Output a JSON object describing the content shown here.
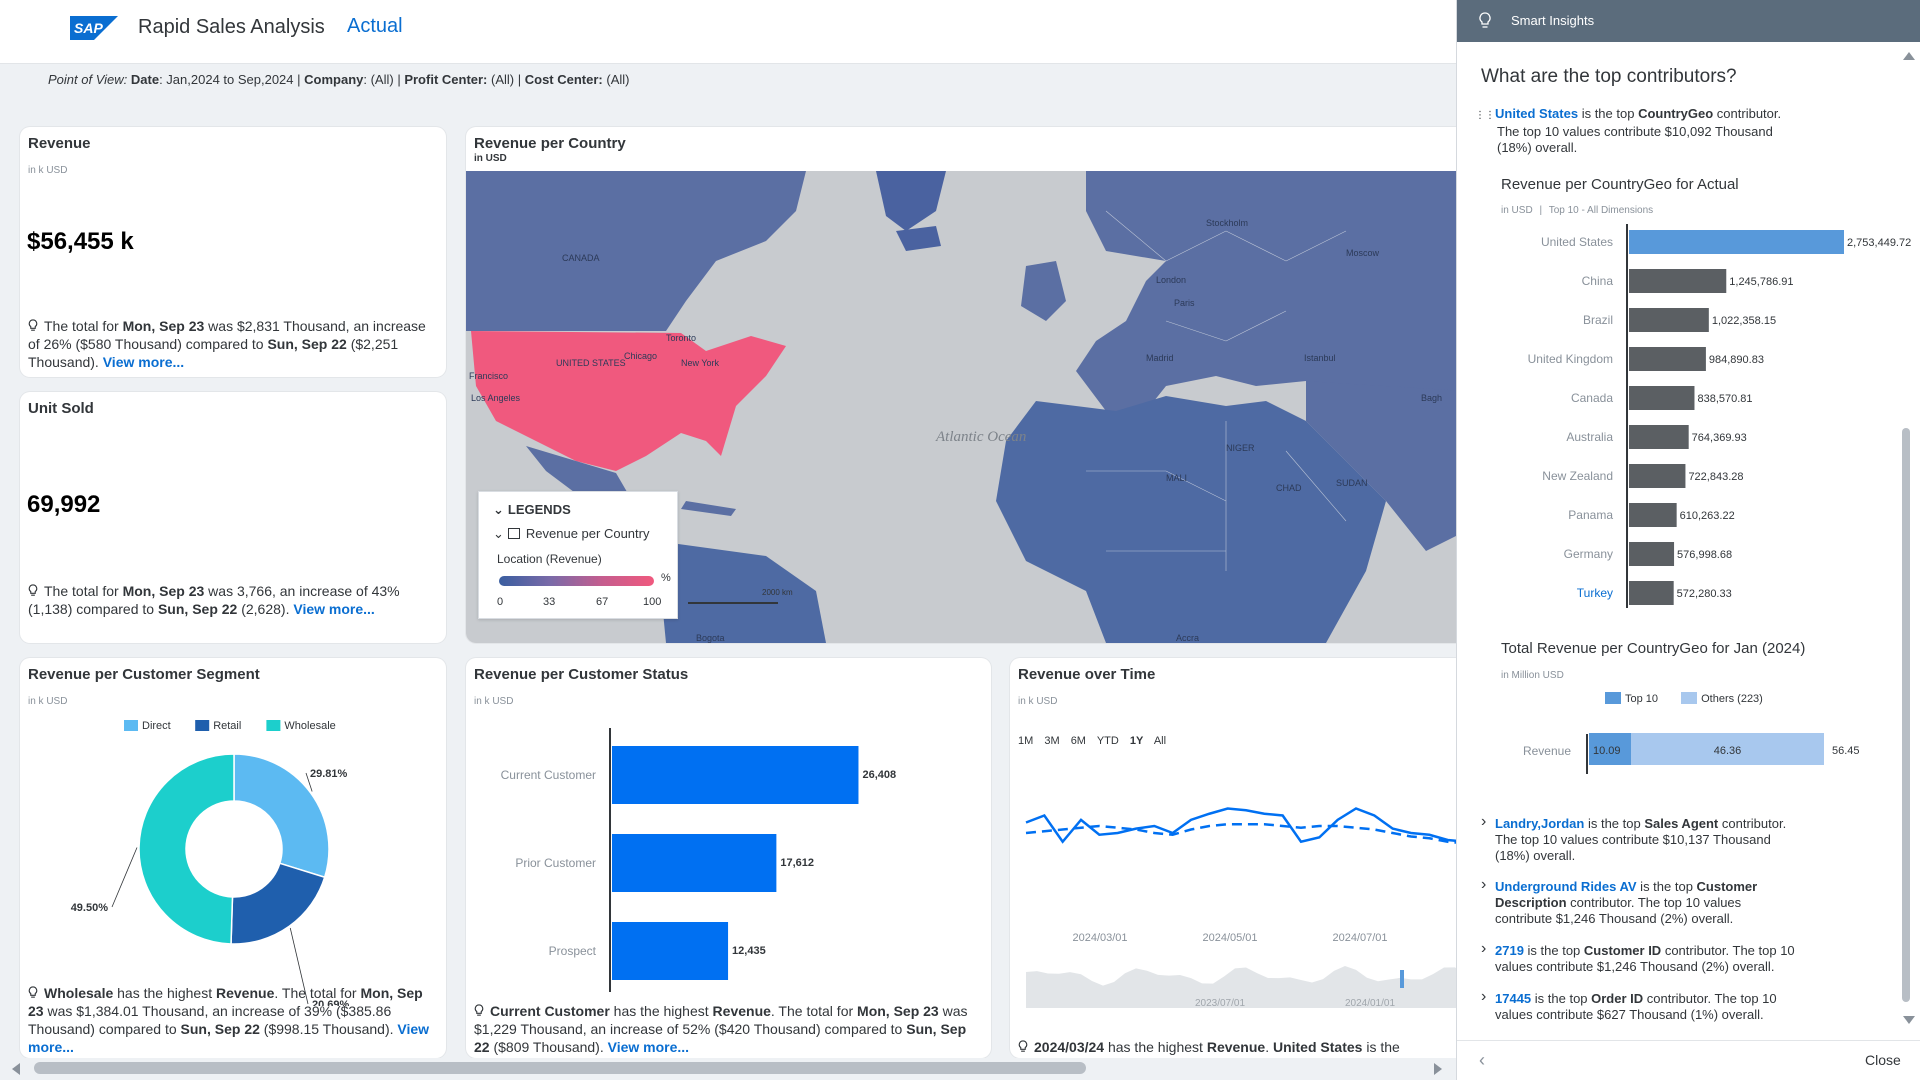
{
  "app": {
    "brand": "SAP",
    "title": "Rapid Sales Analysis",
    "version": "Actual"
  },
  "pov": {
    "label": "Point of View:",
    "date_label": "Date",
    "date_value": ": Jan,2024 to Sep,2024 |",
    "company_label": "Company",
    "company_value": ": (All) |",
    "profit_label": "Profit Center:",
    "profit_value": "(All) |",
    "cost_label": "Cost Center:",
    "cost_value": "(All)"
  },
  "revenue_card": {
    "title": "Revenue",
    "unit": "in k USD",
    "value": "$56,455 k",
    "insight_1": "The total for ",
    "insight_date1": "Mon, Sep 23",
    "insight_2": " was $2,831 Thousand, an increase of 26% ($580 Thousand) compared to ",
    "insight_date2": "Sun, Sep 22",
    "insight_3": " ($2,251 Thousand). ",
    "view_more": "View more..."
  },
  "unit_card": {
    "title": "Unit Sold",
    "value": "69,992",
    "insight_1": "The total for ",
    "insight_date1": "Mon, Sep 23",
    "insight_2": " was 3,766, an increase of 43% (1,138) compared to ",
    "insight_date2": "Sun, Sep 22",
    "insight_3": " (2,628). ",
    "view_more": "View more..."
  },
  "map_card": {
    "title": "Revenue per Country",
    "unit": "in USD",
    "map_labels": [
      "CANADA",
      "UNITED STATES",
      "Chicago",
      "New York",
      "Toronto",
      "Los Angeles",
      "Francisco",
      "Stockholm",
      "London",
      "Paris",
      "Madrid",
      "Moscow",
      "Istanbul",
      "Bagh",
      "Bogota",
      "Accra",
      "CHAD",
      "SUDAN",
      "MALI",
      "NIGER"
    ],
    "ocean": "Atlantic Ocean",
    "scale": "2000 km",
    "legend": {
      "heading": "LEGENDS",
      "series": "Revenue per Country",
      "location": "Location (Revenue)",
      "pct": "%",
      "ticks": [
        "0",
        "33",
        "67",
        "100"
      ]
    }
  },
  "segment_card": {
    "title": "Revenue per Customer Segment",
    "unit": "in k USD",
    "insight_seg": "Wholesale",
    "insight_1": " has the highest ",
    "insight_metric": "Revenue",
    "insight_2": ". The total for ",
    "insight_date1": "Mon, Sep 23",
    "insight_3": " was $1,384.01 Thousand, an increase of 39% ($385.86 Thousand) compared to ",
    "insight_date2": "Sun, Sep 22",
    "insight_4": " ($998.15 Thousand). ",
    "view_more": "View more..."
  },
  "status_card": {
    "title": "Revenue per Customer Status",
    "unit": "in k USD",
    "insight_seg": "Current Customer",
    "insight_1": " has the highest ",
    "insight_metric": "Revenue",
    "insight_2": ". The total for ",
    "insight_date1": "Mon, Sep 23",
    "insight_3": " was $1,229 Thousand, an increase of 52% ($420 Thousand) compared to ",
    "insight_date2": "Sun, Sep 22",
    "insight_4": " ($809 Thousand). ",
    "view_more": "View more..."
  },
  "time_card": {
    "title": "Revenue over Time",
    "unit": "in k USD",
    "filters": [
      "1M",
      "3M",
      "6M",
      "YTD",
      "1Y",
      "All"
    ],
    "active_filter": "1Y",
    "x_ticks": [
      "2024/03/01",
      "2024/05/01",
      "2024/07/01"
    ],
    "nav_ticks": [
      "2023/07/01",
      "2024/01/01"
    ],
    "insight_date": "2024/03/24",
    "insight_1": " has the highest ",
    "insight_metric": "Revenue",
    "insight_2": ". ",
    "insight_country": "United States",
    "insight_3": " is the"
  },
  "panel": {
    "title": "Smart Insights",
    "question": "What are the top contributors?",
    "top_country": "United States",
    "top_text_1": " is the top ",
    "top_dim": "CountryGeo",
    "top_text_2": " contributor.",
    "top_text_3": "The top 10 values contribute $10,092 Thousand",
    "top_text_4": "(18%) overall.",
    "chart1_title": "Revenue per CountryGeo for Actual",
    "chart1_unit": "in USD",
    "chart1_filter": "Top 10 - All Dimensions",
    "chart2_title": "Total Revenue per CountryGeo for Jan (2024)",
    "chart2_unit": "in Million USD",
    "chart2_legend_top": "Top 10",
    "chart2_legend_others": "Others (223)",
    "chart2_label": "Revenue",
    "items": [
      {
        "lead": "Landry,Jordan",
        "mid": "  is the top ",
        "dim": "Sales Agent",
        "tail": " contributor.",
        "line2": "The top 10 values contribute $10,137 Thousand",
        "line3": "(18%) overall."
      },
      {
        "lead": "Underground Rides AV",
        "mid": " is the top ",
        "dim": "Customer",
        "tail": "",
        "line2b": "Description",
        "line2": " contributor. The top 10 values",
        "line3": "contribute $1,246 Thousand (2%) overall."
      },
      {
        "lead": "2719",
        "mid": " is the top ",
        "dim": "Customer ID",
        "tail": " contributor. The top 10",
        "line2": "values contribute $1,246 Thousand (2%) overall.",
        "line3": ""
      },
      {
        "lead": "17445",
        "mid": " is the top ",
        "dim": "Order ID",
        "tail": " contributor. The top 10",
        "line2": "values contribute $627 Thousand (1%) overall.",
        "line3": ""
      }
    ],
    "close": "Close"
  },
  "colors": {
    "accent": "#0a6ed1",
    "map_base": "#5b6fa3",
    "map_highlight": "#f0597e",
    "bar_blue": "#0070f2",
    "bar_dark": "#5b5f63",
    "bar_top": "#5899da",
    "direct": "#5cbaf2",
    "retail": "#1f5fad",
    "wholesale": "#1ccfcc"
  },
  "chart_data": [
    {
      "type": "pie",
      "title": "Revenue per Customer Segment",
      "categories": [
        "Direct",
        "Retail",
        "Wholesale"
      ],
      "values": [
        29.81,
        20.69,
        49.5
      ],
      "labels": [
        "29.81%",
        "20.69%",
        "49.50%"
      ],
      "legend": "top"
    },
    {
      "type": "bar",
      "title": "Revenue per Customer Status",
      "categories": [
        "Current Customer",
        "Prior Customer",
        "Prospect"
      ],
      "values": [
        26408,
        17612,
        12435
      ],
      "labels": [
        "26,408",
        "17,612",
        "12,435"
      ],
      "xlim": [
        0,
        30000
      ]
    },
    {
      "type": "bar",
      "title": "Revenue per CountryGeo for Actual",
      "categories": [
        "United States",
        "China",
        "Brazil",
        "United Kingdom",
        "Canada",
        "Australia",
        "New Zealand",
        "Panama",
        "Germany",
        "Turkey"
      ],
      "values": [
        2753449.72,
        1245786.91,
        1022358.15,
        984890.83,
        838570.81,
        764369.93,
        722843.28,
        610263.22,
        576998.68,
        572280.33
      ],
      "labels": [
        "2,753,449.72",
        "1,245,786.91",
        "1,022,358.15",
        "984,890.83",
        "838,570.81",
        "764,369.93",
        "722,843.28",
        "610,263.22",
        "576,998.68",
        "572,280.33"
      ],
      "xlim": [
        0,
        3300000
      ]
    },
    {
      "type": "bar",
      "title": "Total Revenue per CountryGeo for Jan (2024)",
      "categories": [
        "Revenue"
      ],
      "series": [
        {
          "name": "Top 10",
          "values": [
            10.09
          ]
        },
        {
          "name": "Others (223)",
          "values": [
            46.36
          ]
        }
      ],
      "total": 56.45,
      "labels": [
        "10.09",
        "46.36",
        "56.45"
      ]
    },
    {
      "type": "line",
      "title": "Revenue over Time",
      "x_ticks": [
        "2024/03/01",
        "2024/05/01",
        "2024/07/01"
      ],
      "series": [
        {
          "values": [
            52,
            60,
            30,
            55,
            38,
            40,
            45,
            48,
            40,
            55,
            62,
            68,
            66,
            62,
            60,
            30,
            35,
            55,
            68,
            60,
            45,
            40,
            38,
            32,
            30
          ]
        },
        {
          "values": [
            40,
            42,
            44,
            46,
            48,
            46,
            44,
            40,
            38,
            44,
            48,
            50,
            50,
            50,
            48,
            46,
            48,
            48,
            46,
            44,
            40,
            36,
            34,
            30,
            28
          ]
        }
      ]
    }
  ]
}
